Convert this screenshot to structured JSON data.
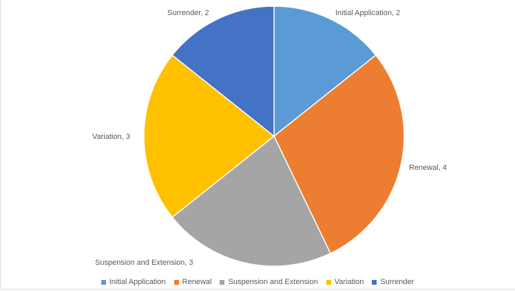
{
  "chart_data": {
    "type": "pie",
    "title": "",
    "categories": [
      "Initial Application",
      "Renewal",
      "Suspension and Extension",
      "Variation",
      "Surrender"
    ],
    "values": [
      2,
      4,
      3,
      3,
      2
    ],
    "colors": [
      "#5b9bd5",
      "#ed7d31",
      "#a5a5a5",
      "#ffc000",
      "#4472c4"
    ],
    "data_labels": [
      "Initial Application, 2",
      "Renewal, 4",
      "Suspension and Extension, 3",
      "Variation, 3",
      "Surrender, 2"
    ],
    "start_angle_deg": 0,
    "direction": "clockwise",
    "legend": {
      "position": "bottom",
      "entries": [
        "Initial Application",
        "Renewal",
        "Suspension and Extension",
        "Variation",
        "Surrender"
      ]
    }
  }
}
